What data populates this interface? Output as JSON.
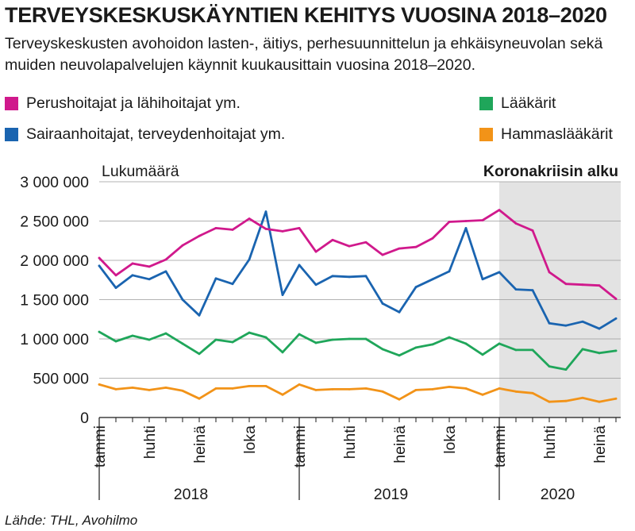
{
  "header": {
    "title": "TERVEYSKESKUSKÄYNTIEN KEHITYS VUOSINA 2018–2020",
    "subtitle": "Terveyskeskusten avohoidon lasten-, äitiys, perhesuunnittelun ja ehkäisyneuvolan sekä muiden neuvolapalvelujen käynnit kuukausittain vuosina 2018–2020."
  },
  "source": "Lähde: THL, Avohilmo",
  "chart_data": {
    "type": "line",
    "ylabel": "Lukumäärä",
    "ylim": [
      0,
      3000000
    ],
    "yticks": [
      0,
      500000,
      1000000,
      1500000,
      2000000,
      2500000,
      3000000
    ],
    "ytick_labels": [
      "0",
      "500 000",
      "1 000 000",
      "1 500 000",
      "2 000 000",
      "2 500 000",
      "3 000 000"
    ],
    "x": [
      "2018-01",
      "2018-02",
      "2018-03",
      "2018-04",
      "2018-05",
      "2018-06",
      "2018-07",
      "2018-08",
      "2018-09",
      "2018-10",
      "2018-11",
      "2018-12",
      "2019-01",
      "2019-02",
      "2019-03",
      "2019-04",
      "2019-05",
      "2019-06",
      "2019-07",
      "2019-08",
      "2019-09",
      "2019-10",
      "2019-11",
      "2019-12",
      "2020-01",
      "2020-02",
      "2020-03",
      "2020-04",
      "2020-05",
      "2020-06",
      "2020-07",
      "2020-08"
    ],
    "xtick_labels": [
      {
        "x": "2018-01",
        "label": "tammi"
      },
      {
        "x": "2018-04",
        "label": "huhti"
      },
      {
        "x": "2018-07",
        "label": "heinä"
      },
      {
        "x": "2018-10",
        "label": "loka"
      },
      {
        "x": "2019-01",
        "label": "tammi"
      },
      {
        "x": "2019-04",
        "label": "huhti"
      },
      {
        "x": "2019-07",
        "label": "heinä"
      },
      {
        "x": "2019-10",
        "label": "loka"
      },
      {
        "x": "2020-01",
        "label": "tammi"
      },
      {
        "x": "2020-04",
        "label": "huhti"
      },
      {
        "x": "2020-07",
        "label": "heinä"
      }
    ],
    "years": [
      {
        "label": "2018",
        "center": "2018-06"
      },
      {
        "label": "2019",
        "center": "2019-06"
      },
      {
        "label": "2020",
        "center": "2020-04"
      }
    ],
    "annotation": {
      "label": "Koronakriisin alku",
      "from": "2020-01",
      "to": "2020-08",
      "shade": "#e3e3e3"
    },
    "grid": true,
    "legend_placement": "top",
    "series": [
      {
        "name": "Perushoitajat ja lähihoitajat ym.",
        "color": "#d0198c",
        "values": [
          2030000,
          1810000,
          1960000,
          1920000,
          2010000,
          2190000,
          2310000,
          2410000,
          2390000,
          2530000,
          2400000,
          2370000,
          2410000,
          2110000,
          2260000,
          2180000,
          2230000,
          2070000,
          2150000,
          2170000,
          2280000,
          2490000,
          2500000,
          2510000,
          2640000,
          2470000,
          2380000,
          1850000,
          1700000,
          1690000,
          1680000,
          1510000
        ]
      },
      {
        "name": "Sairaanhoitajat, terveydenhoitajat ym.",
        "color": "#1a64b0",
        "values": [
          1930000,
          1650000,
          1810000,
          1760000,
          1860000,
          1500000,
          1300000,
          1770000,
          1700000,
          2010000,
          2620000,
          1560000,
          1940000,
          1690000,
          1800000,
          1790000,
          1800000,
          1450000,
          1340000,
          1660000,
          1760000,
          1860000,
          2410000,
          1760000,
          1850000,
          1630000,
          1620000,
          1200000,
          1170000,
          1220000,
          1130000,
          1260000
        ]
      },
      {
        "name": "Lääkärit",
        "color": "#1fa65a",
        "values": [
          1090000,
          970000,
          1040000,
          990000,
          1070000,
          940000,
          810000,
          990000,
          960000,
          1080000,
          1020000,
          830000,
          1060000,
          950000,
          990000,
          1000000,
          1000000,
          870000,
          790000,
          890000,
          930000,
          1020000,
          940000,
          800000,
          940000,
          860000,
          860000,
          650000,
          610000,
          870000,
          820000,
          850000
        ]
      },
      {
        "name": "Hammaslääkärit",
        "color": "#f29318",
        "values": [
          420000,
          360000,
          380000,
          350000,
          380000,
          340000,
          240000,
          370000,
          370000,
          400000,
          400000,
          290000,
          420000,
          350000,
          360000,
          360000,
          370000,
          330000,
          230000,
          350000,
          360000,
          390000,
          370000,
          290000,
          370000,
          330000,
          310000,
          200000,
          210000,
          250000,
          200000,
          240000
        ]
      }
    ]
  }
}
